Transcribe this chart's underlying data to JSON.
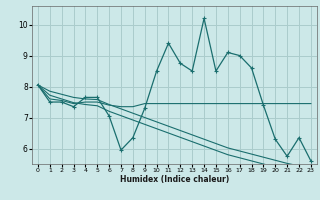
{
  "xlabel": "Humidex (Indice chaleur)",
  "bg_color": "#cce8e8",
  "grid_color": "#aacccc",
  "line_color": "#1a6e6e",
  "xlim": [
    -0.5,
    23.5
  ],
  "ylim": [
    5.5,
    10.6
  ],
  "xticks": [
    0,
    1,
    2,
    3,
    4,
    5,
    6,
    7,
    8,
    9,
    10,
    11,
    12,
    13,
    14,
    15,
    16,
    17,
    18,
    19,
    20,
    21,
    22,
    23
  ],
  "yticks": [
    6,
    7,
    8,
    9,
    10
  ],
  "main_line": [
    8.05,
    7.5,
    7.5,
    7.35,
    7.65,
    7.65,
    7.05,
    5.95,
    6.35,
    7.3,
    8.5,
    9.4,
    8.75,
    8.5,
    10.2,
    8.5,
    9.1,
    9.0,
    8.6,
    7.4,
    6.3,
    5.75,
    6.35,
    5.6
  ],
  "flat_line": [
    8.05,
    7.6,
    7.55,
    7.45,
    7.5,
    7.5,
    7.4,
    7.35,
    7.35,
    7.45,
    7.45,
    7.45,
    7.45,
    7.45,
    7.45,
    7.45,
    7.45,
    7.45,
    7.45,
    7.45,
    7.45,
    7.45,
    7.45,
    7.45
  ],
  "descend1": [
    8.05,
    7.72,
    7.6,
    7.48,
    7.42,
    7.38,
    7.2,
    7.06,
    6.92,
    6.78,
    6.64,
    6.5,
    6.36,
    6.22,
    6.08,
    5.94,
    5.8,
    5.7,
    5.6,
    5.5,
    5.4,
    5.3,
    5.22,
    5.14
  ],
  "descend2": [
    8.05,
    7.85,
    7.75,
    7.65,
    7.6,
    7.58,
    7.42,
    7.28,
    7.14,
    7.0,
    6.86,
    6.72,
    6.58,
    6.44,
    6.3,
    6.16,
    6.02,
    5.92,
    5.82,
    5.72,
    5.62,
    5.52,
    5.44,
    5.36
  ]
}
